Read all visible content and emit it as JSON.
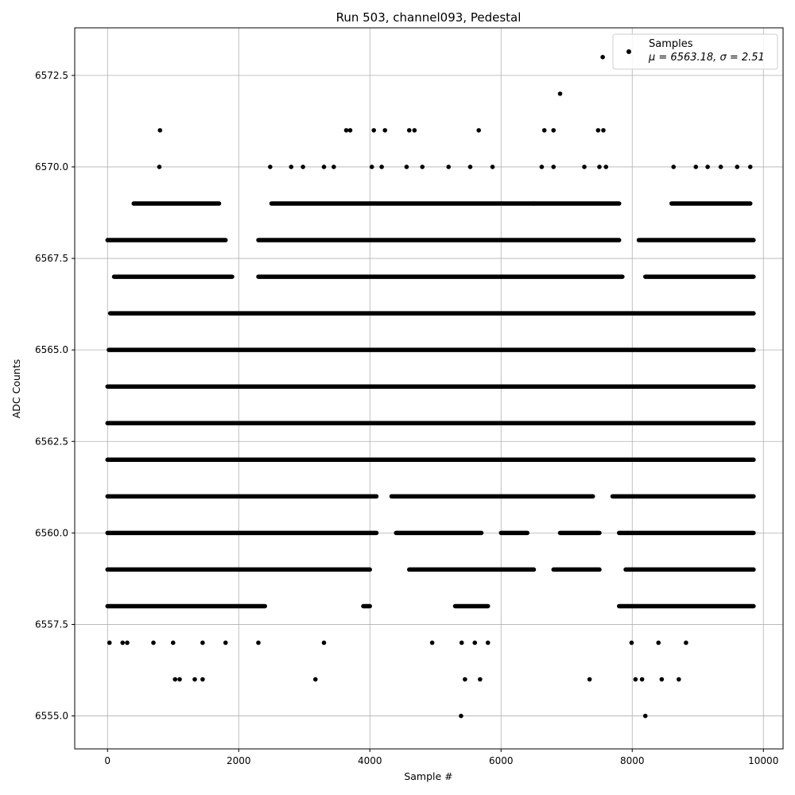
{
  "chart_data": {
    "type": "scatter",
    "title": "Run 503, channel093, Pedestal",
    "xlabel": "Sample #",
    "ylabel": "ADC Counts",
    "xlim": [
      -500,
      10300
    ],
    "ylim": [
      6554.1,
      6573.8
    ],
    "xticks": [
      0,
      2000,
      4000,
      6000,
      8000,
      10000
    ],
    "xtick_labels": [
      "0",
      "2000",
      "4000",
      "6000",
      "8000",
      "10000"
    ],
    "yticks": [
      6555.0,
      6557.5,
      6560.0,
      6562.5,
      6565.0,
      6567.5,
      6570.0,
      6572.5
    ],
    "ytick_labels": [
      "6555.0",
      "6557.5",
      "6560.0",
      "6562.5",
      "6565.0",
      "6567.5",
      "6570.0",
      "6572.5"
    ],
    "grid": true,
    "legend_position": "top-right",
    "marker_color": "#000000",
    "series": [
      {
        "name": "Samples",
        "stats_label": "μ = 6563.18, σ = 2.51",
        "levels": [
          {
            "y": 6562,
            "ranges": [
              [
                0,
                9850
              ]
            ]
          },
          {
            "y": 6563,
            "ranges": [
              [
                0,
                9850
              ]
            ]
          },
          {
            "y": 6564,
            "ranges": [
              [
                0,
                9850
              ]
            ]
          },
          {
            "y": 6565,
            "ranges": [
              [
                20,
                9850
              ]
            ]
          },
          {
            "y": 6561,
            "ranges": [
              [
                0,
                4100
              ],
              [
                4330,
                7400
              ],
              [
                7700,
                9850
              ]
            ]
          },
          {
            "y": 6566,
            "ranges": [
              [
                40,
                9850
              ]
            ]
          },
          {
            "y": 6560,
            "ranges": [
              [
                0,
                4100
              ],
              [
                4400,
                5700
              ],
              [
                6000,
                6400
              ],
              [
                6900,
                7500
              ],
              [
                7800,
                9850
              ]
            ]
          },
          {
            "y": 6567,
            "ranges": [
              [
                100,
                1900
              ],
              [
                2300,
                7850
              ],
              [
                8200,
                9850
              ]
            ]
          },
          {
            "y": 6559,
            "ranges": [
              [
                0,
                4000
              ],
              [
                4600,
                6500
              ],
              [
                6800,
                7500
              ],
              [
                7900,
                9850
              ]
            ]
          },
          {
            "y": 6568,
            "ranges": [
              [
                0,
                1800
              ],
              [
                2300,
                7800
              ],
              [
                8100,
                9850
              ]
            ]
          },
          {
            "y": 6558,
            "ranges": [
              [
                0,
                2400
              ],
              [
                3900,
                4000
              ],
              [
                5300,
                5800
              ],
              [
                7800,
                9850
              ]
            ]
          },
          {
            "y": 6569,
            "ranges": [
              [
                400,
                1700
              ],
              [
                2500,
                6500
              ],
              [
                6500,
                7800
              ],
              [
                8600,
                9800
              ]
            ]
          }
        ],
        "points": [
          [
            30,
            6557
          ],
          [
            230,
            6557
          ],
          [
            300,
            6557
          ],
          [
            700,
            6557
          ],
          [
            1000,
            6557
          ],
          [
            1450,
            6557
          ],
          [
            1800,
            6557
          ],
          [
            2300,
            6557
          ],
          [
            3300,
            6557
          ],
          [
            4950,
            6557
          ],
          [
            5400,
            6557
          ],
          [
            5600,
            6557
          ],
          [
            5800,
            6557
          ],
          [
            7990,
            6557
          ],
          [
            8400,
            6557
          ],
          [
            8820,
            6557
          ],
          [
            1030,
            6556
          ],
          [
            1100,
            6556
          ],
          [
            1330,
            6556
          ],
          [
            1450,
            6556
          ],
          [
            3170,
            6556
          ],
          [
            5450,
            6556
          ],
          [
            5680,
            6556
          ],
          [
            7350,
            6556
          ],
          [
            8050,
            6556
          ],
          [
            8150,
            6556
          ],
          [
            8450,
            6556
          ],
          [
            8710,
            6556
          ],
          [
            5390,
            6555
          ],
          [
            8200,
            6555
          ],
          [
            790,
            6570
          ],
          [
            2480,
            6570
          ],
          [
            2800,
            6570
          ],
          [
            2980,
            6570
          ],
          [
            3300,
            6570
          ],
          [
            3450,
            6570
          ],
          [
            4030,
            6570
          ],
          [
            4180,
            6570
          ],
          [
            4560,
            6570
          ],
          [
            4800,
            6570
          ],
          [
            5200,
            6570
          ],
          [
            5530,
            6570
          ],
          [
            5870,
            6570
          ],
          [
            6620,
            6570
          ],
          [
            6800,
            6570
          ],
          [
            7270,
            6570
          ],
          [
            7500,
            6570
          ],
          [
            7600,
            6570
          ],
          [
            8630,
            6570
          ],
          [
            8970,
            6570
          ],
          [
            9150,
            6570
          ],
          [
            9350,
            6570
          ],
          [
            9600,
            6570
          ],
          [
            9800,
            6570
          ],
          [
            800,
            6571
          ],
          [
            3640,
            6571
          ],
          [
            3700,
            6571
          ],
          [
            4060,
            6571
          ],
          [
            4230,
            6571
          ],
          [
            4600,
            6571
          ],
          [
            4680,
            6571
          ],
          [
            5660,
            6571
          ],
          [
            6660,
            6571
          ],
          [
            6800,
            6571
          ],
          [
            7480,
            6571
          ],
          [
            7560,
            6571
          ],
          [
            6900,
            6572
          ],
          [
            7550,
            6573
          ]
        ]
      }
    ]
  }
}
